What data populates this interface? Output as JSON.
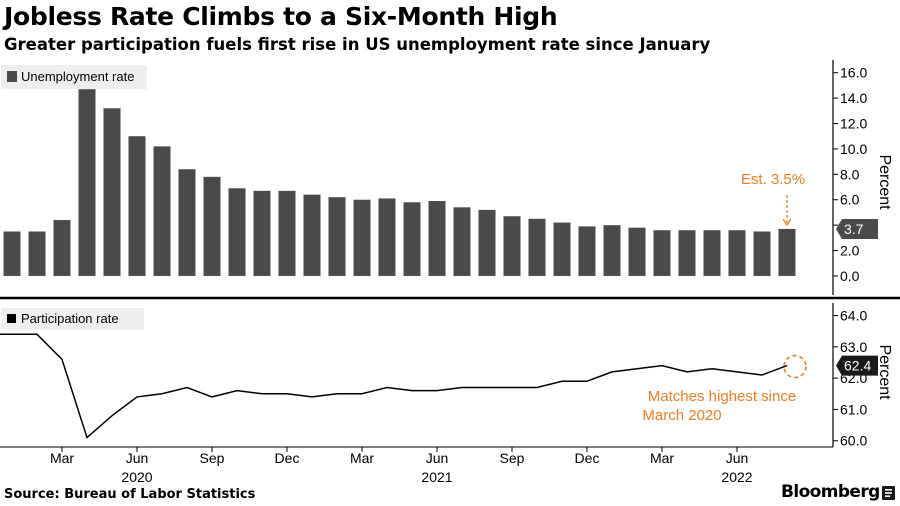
{
  "header": {
    "title": "Jobless Rate Climbs to a Six-Month High",
    "subtitle": "Greater participation fuels first rise in US unemployment rate since January"
  },
  "footer": {
    "source": "Source: Bureau of Labor Statistics",
    "brand": "Bloomberg"
  },
  "colors": {
    "bar": "#4a4a4a",
    "line": "#000000",
    "annotation": "#f07c22",
    "legend_bg": "#eeeeee",
    "badge": "#4a4a4a"
  },
  "icons": {
    "brand": "bloomberg-terminal-icon"
  },
  "chart_data": [
    {
      "type": "bar",
      "legend": "Unemployment rate",
      "ylabel": "Percent",
      "ylim": [
        -1.5,
        17
      ],
      "yticks": [
        "0.0",
        "2.0",
        "4.0",
        "6.0",
        "8.0",
        "10.0",
        "12.0",
        "14.0",
        "16.0"
      ],
      "categories": [
        "Jan 2020",
        "Feb 2020",
        "Mar 2020",
        "Apr 2020",
        "May 2020",
        "Jun 2020",
        "Jul 2020",
        "Aug 2020",
        "Sep 2020",
        "Oct 2020",
        "Nov 2020",
        "Dec 2020",
        "Jan 2021",
        "Feb 2021",
        "Mar 2021",
        "Apr 2021",
        "May 2021",
        "Jun 2021",
        "Jul 2021",
        "Aug 2021",
        "Sep 2021",
        "Oct 2021",
        "Nov 2021",
        "Dec 2021",
        "Jan 2022",
        "Feb 2022",
        "Mar 2022",
        "Apr 2022",
        "May 2022",
        "Jun 2022",
        "Jul 2022",
        "Aug 2022"
      ],
      "values": [
        3.5,
        3.5,
        4.4,
        14.7,
        13.2,
        11.0,
        10.2,
        8.4,
        7.8,
        6.9,
        6.7,
        6.7,
        6.4,
        6.2,
        6.0,
        6.1,
        5.8,
        5.9,
        5.4,
        5.2,
        4.7,
        4.5,
        4.2,
        3.9,
        4.0,
        3.8,
        3.6,
        3.6,
        3.6,
        3.6,
        3.5,
        3.7
      ],
      "last_value_label": "3.7",
      "annotation": "Est. 3.5%"
    },
    {
      "type": "line",
      "legend": "Participation rate",
      "ylabel": "Percent",
      "ylim": [
        59.8,
        64.4
      ],
      "yticks": [
        "60.0",
        "61.0",
        "62.0",
        "63.0",
        "64.0"
      ],
      "x": [
        "Jan 2020",
        "Feb 2020",
        "Mar 2020",
        "Apr 2020",
        "May 2020",
        "Jun 2020",
        "Jul 2020",
        "Aug 2020",
        "Sep 2020",
        "Oct 2020",
        "Nov 2020",
        "Dec 2020",
        "Jan 2021",
        "Feb 2021",
        "Mar 2021",
        "Apr 2021",
        "May 2021",
        "Jun 2021",
        "Jul 2021",
        "Aug 2021",
        "Sep 2021",
        "Oct 2021",
        "Nov 2021",
        "Dec 2021",
        "Jan 2022",
        "Feb 2022",
        "Mar 2022",
        "Apr 2022",
        "May 2022",
        "Jun 2022",
        "Jul 2022",
        "Aug 2022"
      ],
      "values": [
        63.4,
        63.4,
        62.6,
        60.1,
        60.8,
        61.4,
        61.5,
        61.7,
        61.4,
        61.6,
        61.5,
        61.5,
        61.4,
        61.5,
        61.5,
        61.7,
        61.6,
        61.6,
        61.7,
        61.7,
        61.7,
        61.7,
        61.9,
        61.9,
        62.2,
        62.3,
        62.4,
        62.2,
        62.3,
        62.2,
        62.1,
        62.4
      ],
      "last_value_label": "62.4",
      "annotation": "Matches highest since March 2020"
    }
  ],
  "x_axis": {
    "month_ticks": [
      {
        "label": "Mar",
        "index": 2
      },
      {
        "label": "Jun",
        "index": 5
      },
      {
        "label": "Sep",
        "index": 8
      },
      {
        "label": "Dec",
        "index": 11
      },
      {
        "label": "Mar",
        "index": 14
      },
      {
        "label": "Jun",
        "index": 17
      },
      {
        "label": "Sep",
        "index": 20
      },
      {
        "label": "Dec",
        "index": 23
      },
      {
        "label": "Mar",
        "index": 26
      },
      {
        "label": "Jun",
        "index": 29
      }
    ],
    "year_labels": [
      {
        "label": "2020",
        "index": 5
      },
      {
        "label": "2021",
        "index": 17
      },
      {
        "label": "2022",
        "index": 29
      }
    ]
  }
}
